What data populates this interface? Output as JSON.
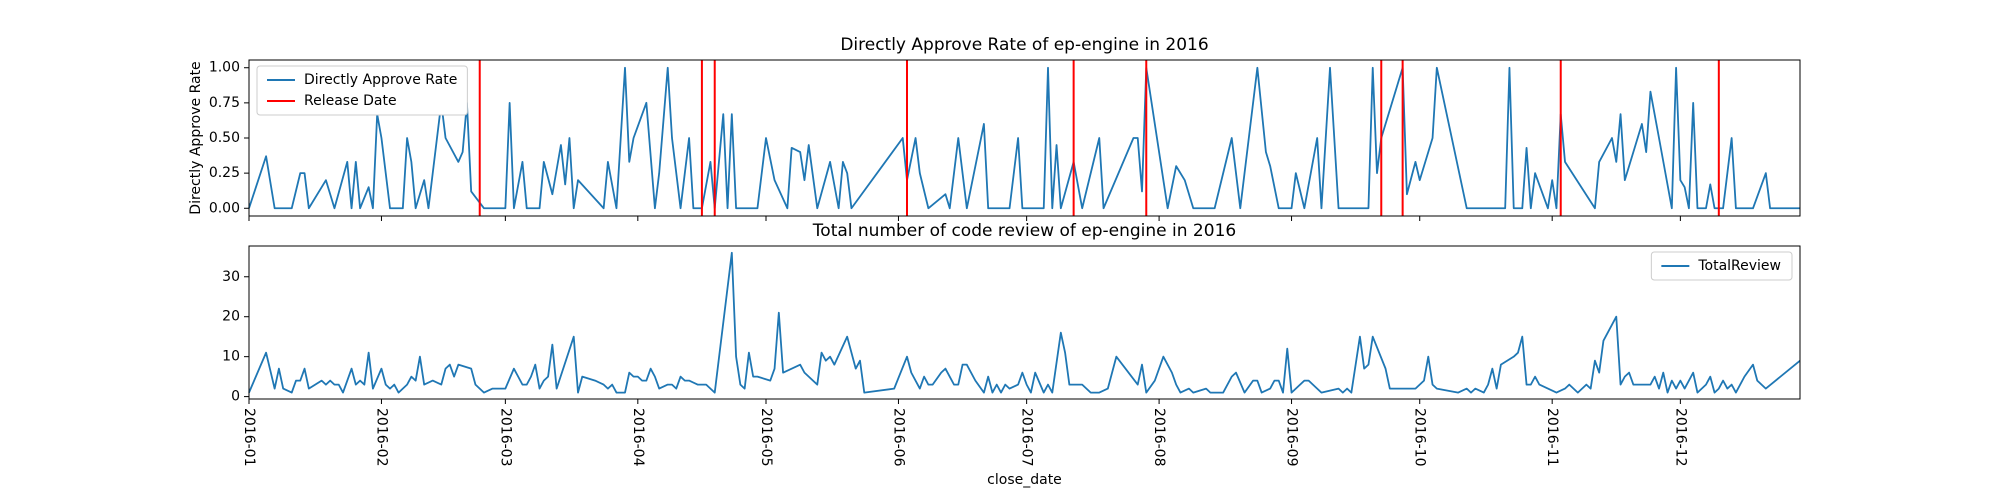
{
  "chart_data": [
    {
      "type": "line",
      "title": "Directly Approve Rate of ep-engine in 2016",
      "y_label": "Directly Approve Rate",
      "xlim": [
        0,
        363
      ],
      "ylim": [
        -0.055,
        1.055
      ],
      "yticks": [
        {
          "value": 0,
          "label": "0.00"
        },
        {
          "value": 0.25,
          "label": "0.25"
        },
        {
          "value": 0.5,
          "label": "0.50"
        },
        {
          "value": 0.75,
          "label": "0.75"
        },
        {
          "value": 1,
          "label": "1.00"
        }
      ],
      "legend": "upper left",
      "series": [
        {
          "name": "Directly Approve Rate",
          "color": "#1f77b4",
          "x": [
            0,
            4,
            6,
            10,
            12,
            13,
            14,
            18,
            20,
            23,
            24,
            25,
            26,
            28,
            29,
            30,
            31,
            33,
            36,
            37,
            38,
            39,
            41,
            42,
            43,
            45,
            46,
            49,
            50,
            51,
            52,
            55,
            60,
            61,
            62,
            64,
            65,
            68,
            69,
            71,
            73,
            74,
            75,
            76,
            77,
            83,
            84,
            86,
            88,
            89,
            90,
            93,
            95,
            96,
            98,
            99,
            101,
            103,
            104,
            106,
            108,
            109,
            111,
            112,
            113,
            114,
            119,
            121,
            123,
            126,
            127,
            129,
            130,
            131,
            133,
            136,
            138,
            139,
            140,
            141,
            153,
            154,
            156,
            157,
            159,
            163,
            164,
            166,
            168,
            172,
            173,
            178,
            180,
            181,
            186,
            187,
            188,
            189,
            190,
            193,
            195,
            199,
            200,
            207,
            208,
            209,
            210,
            215,
            217,
            219,
            221,
            226,
            230,
            232,
            236,
            238,
            239,
            241,
            244,
            245,
            247,
            250,
            251,
            253,
            255,
            262,
            263,
            264,
            265,
            270,
            271,
            273,
            274,
            277,
            278,
            285,
            294,
            295,
            296,
            298,
            299,
            300,
            301,
            304,
            305,
            306,
            307,
            308,
            315,
            316,
            319,
            320,
            321,
            322,
            326,
            327,
            328,
            330,
            333,
            334,
            335,
            336,
            337,
            338,
            339,
            341,
            342,
            343,
            345,
            347,
            348,
            352,
            355,
            356,
            363
          ],
          "values": [
            0,
            0.37,
            0,
            0,
            0.25,
            0.25,
            0,
            0.2,
            0,
            0.33,
            0,
            0.33,
            0,
            0.15,
            0,
            0.67,
            0.5,
            0,
            0,
            0.5,
            0.33,
            0,
            0.2,
            0,
            0.25,
            0.75,
            0.5,
            0.33,
            0.4,
            0.75,
            0.12,
            0,
            0,
            0.75,
            0,
            0.33,
            0,
            0,
            0.33,
            0.1,
            0.45,
            0.17,
            0.5,
            0,
            0.2,
            0,
            0.33,
            0,
            1,
            0.33,
            0.5,
            0.75,
            0,
            0.25,
            1,
            0.5,
            0,
            0.5,
            0,
            0,
            0.33,
            0,
            0.67,
            0,
            0.67,
            0,
            0,
            0.5,
            0.2,
            0,
            0.43,
            0.4,
            0.2,
            0.45,
            0,
            0.33,
            0,
            0.33,
            0.25,
            0,
            0.5,
            0.2,
            0.5,
            0.25,
            0,
            0.1,
            0,
            0.5,
            0,
            0.6,
            0,
            0,
            0.5,
            0,
            0,
            1,
            0,
            0.45,
            0,
            0.33,
            0,
            0.5,
            0,
            0.5,
            0.5,
            0.12,
            1,
            0,
            0.3,
            0.2,
            0,
            0,
            0.5,
            0,
            1,
            0.4,
            0.3,
            0,
            0,
            0.25,
            0,
            0.5,
            0,
            1,
            0,
            0,
            1,
            0.25,
            0.5,
            1,
            0.1,
            0.33,
            0.2,
            0.5,
            1,
            0,
            0,
            1,
            0,
            0,
            0.43,
            0,
            0.25,
            0,
            0.2,
            0,
            0.67,
            0.33,
            0,
            0.33,
            0.5,
            0.33,
            0.67,
            0.2,
            0.6,
            0.4,
            0.83,
            0.5,
            0,
            1,
            0.2,
            0.15,
            0,
            0.75,
            0,
            0,
            0.17,
            0,
            0,
            0.5,
            0,
            0,
            0.25,
            0,
            0
          ]
        }
      ],
      "vlines": {
        "name": "Release Date",
        "color": "#ff0000",
        "x": [
          54,
          106,
          109,
          154,
          193,
          210,
          265,
          270,
          307,
          344
        ]
      }
    },
    {
      "type": "line",
      "title": "Total number of code review of ep-engine in 2016",
      "x_label": "close_date",
      "xlim": [
        0,
        363
      ],
      "ylim": [
        -0.6,
        37.7
      ],
      "yticks": [
        0,
        10,
        20,
        30
      ],
      "xticks": [
        {
          "value": 0,
          "label": "2016-01"
        },
        {
          "value": 31,
          "label": "2016-02"
        },
        {
          "value": 60,
          "label": "2016-03"
        },
        {
          "value": 91,
          "label": "2016-04"
        },
        {
          "value": 121,
          "label": "2016-05"
        },
        {
          "value": 152,
          "label": "2016-06"
        },
        {
          "value": 182,
          "label": "2016-07"
        },
        {
          "value": 213,
          "label": "2016-08"
        },
        {
          "value": 244,
          "label": "2016-09"
        },
        {
          "value": 274,
          "label": "2016-10"
        },
        {
          "value": 305,
          "label": "2016-11"
        },
        {
          "value": 335,
          "label": "2016-12"
        }
      ],
      "legend": "upper right",
      "series": [
        {
          "name": "TotalReview",
          "color": "#1f77b4",
          "x": [
            0,
            4,
            6,
            7,
            8,
            10,
            11,
            12,
            13,
            14,
            17,
            18,
            19,
            20,
            21,
            22,
            24,
            25,
            26,
            27,
            28,
            29,
            31,
            32,
            33,
            34,
            35,
            37,
            38,
            39,
            40,
            41,
            43,
            45,
            46,
            47,
            48,
            49,
            52,
            53,
            55,
            57,
            60,
            62,
            63,
            64,
            65,
            66,
            67,
            68,
            69,
            70,
            71,
            72,
            76,
            77,
            78,
            81,
            83,
            84,
            85,
            86,
            88,
            89,
            90,
            91,
            92,
            93,
            94,
            95,
            96,
            98,
            99,
            100,
            101,
            102,
            103,
            105,
            107,
            109,
            113,
            114,
            115,
            116,
            117,
            118,
            119,
            122,
            123,
            124,
            125,
            129,
            130,
            131,
            133,
            134,
            135,
            136,
            137,
            140,
            142,
            143,
            144,
            151,
            154,
            155,
            157,
            158,
            159,
            160,
            162,
            163,
            165,
            166,
            167,
            168,
            170,
            172,
            173,
            174,
            175,
            176,
            177,
            178,
            180,
            181,
            182,
            183,
            184,
            186,
            187,
            188,
            190,
            191,
            192,
            195,
            196,
            197,
            199,
            201,
            202,
            203,
            208,
            209,
            210,
            212,
            214,
            216,
            217,
            218,
            220,
            221,
            224,
            225,
            228,
            230,
            231,
            233,
            235,
            236,
            237,
            239,
            240,
            241,
            242,
            243,
            244,
            247,
            248,
            249,
            250,
            251,
            255,
            256,
            257,
            258,
            260,
            261,
            262,
            263,
            266,
            267,
            273,
            275,
            276,
            277,
            278,
            283,
            285,
            286,
            287,
            289,
            290,
            291,
            292,
            293,
            296,
            297,
            298,
            299,
            300,
            301,
            302,
            306,
            308,
            309,
            311,
            313,
            314,
            315,
            316,
            317,
            320,
            321,
            322,
            323,
            324,
            328,
            329,
            330,
            331,
            332,
            333,
            334,
            335,
            336,
            338,
            339,
            341,
            342,
            343,
            344,
            345,
            346,
            347,
            348,
            350,
            352,
            353,
            355,
            363
          ],
          "values": [
            1,
            11,
            2,
            7,
            2,
            1,
            4,
            4,
            7,
            2,
            4,
            3,
            4,
            3,
            3,
            1,
            7,
            3,
            4,
            3,
            11,
            2,
            7,
            3,
            2,
            3,
            1,
            3,
            5,
            4,
            10,
            3,
            4,
            3,
            7,
            8,
            5,
            8,
            7,
            3,
            1,
            2,
            2,
            7,
            5,
            3,
            3,
            5,
            8,
            2,
            4,
            5,
            13,
            2,
            15,
            1,
            5,
            4,
            3,
            2,
            3,
            1,
            1,
            6,
            5,
            5,
            4,
            4,
            7,
            5,
            2,
            3,
            3,
            2,
            5,
            4,
            4,
            3,
            3,
            1,
            36,
            10,
            3,
            2,
            11,
            5,
            5,
            4,
            7,
            21,
            6,
            8,
            6,
            5,
            3,
            11,
            9,
            10,
            8,
            15,
            7,
            9,
            1,
            2,
            10,
            6,
            2,
            5,
            3,
            3,
            6,
            7,
            3,
            3,
            8,
            8,
            4,
            1,
            5,
            1,
            3,
            1,
            3,
            2,
            3,
            6,
            3,
            1,
            6,
            1,
            3,
            1,
            16,
            11,
            3,
            3,
            2,
            1,
            1,
            2,
            6,
            10,
            3,
            8,
            1,
            4,
            10,
            6,
            3,
            1,
            2,
            1,
            2,
            1,
            1,
            5,
            6,
            1,
            4,
            4,
            1,
            2,
            4,
            4,
            1,
            12,
            1,
            4,
            4,
            3,
            2,
            1,
            2,
            1,
            2,
            1,
            15,
            7,
            8,
            15,
            7,
            2,
            2,
            4,
            10,
            3,
            2,
            1,
            2,
            1,
            2,
            1,
            3,
            7,
            2,
            8,
            10,
            11,
            15,
            3,
            3,
            5,
            3,
            1,
            2,
            3,
            1,
            3,
            2,
            9,
            6,
            14,
            20,
            3,
            5,
            6,
            3,
            3,
            5,
            2,
            6,
            1,
            4,
            2,
            4,
            2,
            6,
            1,
            3,
            5,
            1,
            2,
            4,
            2,
            3,
            1,
            5,
            8,
            4,
            2,
            9
          ]
        }
      ]
    }
  ]
}
